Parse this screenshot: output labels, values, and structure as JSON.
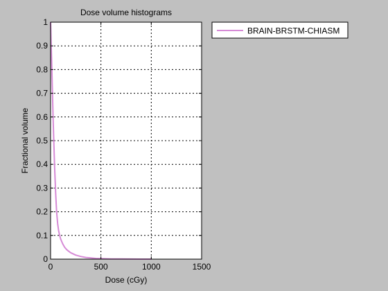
{
  "colors": {
    "figure_background": "#c0c0c0",
    "axes_background": "#ffffff",
    "series": "#d68ad6"
  },
  "chart_data": {
    "type": "line",
    "title": "Dose volume histograms",
    "xlabel": "Dose (cGy)",
    "ylabel": "Fractional volume",
    "xlim": [
      0,
      1500
    ],
    "ylim": [
      0,
      1
    ],
    "xticks": [
      "0",
      "500",
      "1000",
      "1500"
    ],
    "yticks": [
      "0",
      "0.1",
      "0.2",
      "0.3",
      "0.4",
      "0.5",
      "0.6",
      "0.7",
      "0.8",
      "0.9",
      "1"
    ],
    "grid": true,
    "legend_position": "outside-top-right",
    "series": [
      {
        "name": "BRAIN-BRSTM-CHIASM",
        "x": [
          0,
          2,
          5,
          10,
          15,
          20,
          25,
          30,
          40,
          50,
          60,
          70,
          80,
          90,
          100,
          120,
          140,
          160,
          180,
          200,
          250,
          300,
          350,
          400,
          450,
          500,
          600,
          700,
          800,
          900,
          1000
        ],
        "y": [
          1.0,
          0.97,
          0.92,
          0.84,
          0.76,
          0.68,
          0.6,
          0.52,
          0.39,
          0.28,
          0.2,
          0.15,
          0.12,
          0.1,
          0.085,
          0.065,
          0.05,
          0.04,
          0.033,
          0.027,
          0.017,
          0.011,
          0.007,
          0.005,
          0.003,
          0.002,
          0.001,
          0.0005,
          0.0003,
          0.0001,
          0.0
        ]
      }
    ]
  }
}
